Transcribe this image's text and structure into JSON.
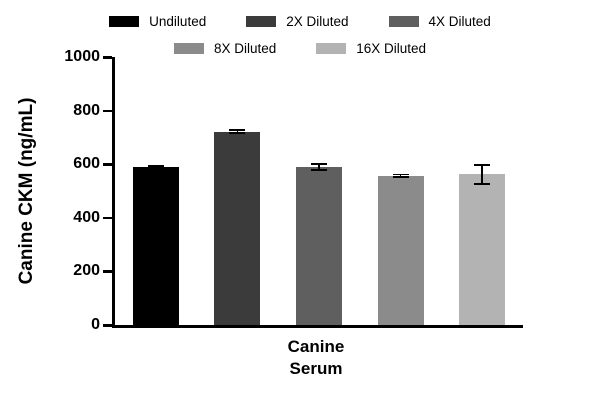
{
  "chart_data": {
    "type": "bar",
    "categories": [
      "Undiluted",
      "2X Diluted",
      "4X Diluted",
      "8X Diluted",
      "16X Diluted"
    ],
    "values": [
      590,
      722,
      590,
      557,
      562
    ],
    "errors": [
      8,
      10,
      15,
      8,
      38
    ],
    "colors": [
      "#000000",
      "#3b3b3b",
      "#5f5f5f",
      "#8b8b8b",
      "#b3b3b3"
    ],
    "title": "",
    "xlabel": "Canine Serum",
    "xlabel_lines": [
      "Canine",
      "Serum"
    ],
    "ylabel": "Canine CKM (ng/mL)",
    "ylim": [
      0,
      1000
    ],
    "yticks": [
      0,
      200,
      400,
      600,
      800,
      1000
    ],
    "grid": false,
    "legend_position": "top",
    "legend_rows": [
      3,
      2
    ]
  }
}
